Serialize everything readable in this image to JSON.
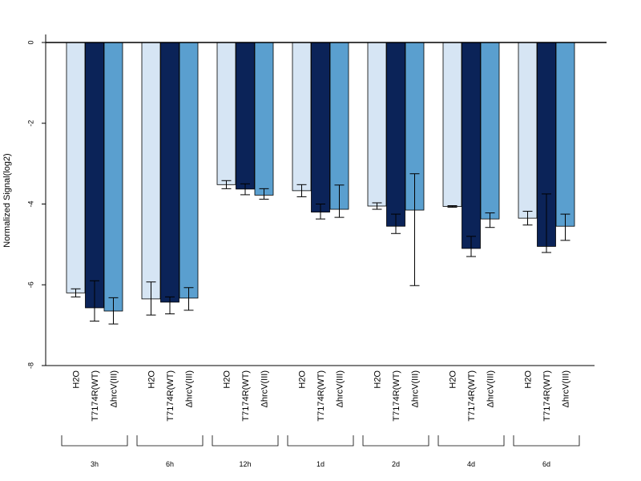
{
  "chart_data": {
    "type": "bar",
    "ylabel": "Normalized Signal(log2)",
    "ylim": [
      -8,
      0
    ],
    "yticks": [
      0,
      -2,
      -4,
      -6,
      -8
    ],
    "groups": [
      "3h",
      "6h",
      "12h",
      "1d",
      "2d",
      "4d",
      "6d"
    ],
    "series": [
      {
        "name": "H2O",
        "color": "#d6e5f4",
        "values": [
          -6.2,
          -6.35,
          -3.52,
          -3.67,
          -4.05,
          -4.06,
          -4.35
        ],
        "err_low": [
          -6.3,
          -6.75,
          -3.62,
          -3.82,
          -4.13,
          -4.08,
          -4.52
        ],
        "err_high": [
          -6.1,
          -5.93,
          -3.42,
          -3.52,
          -3.97,
          -4.04,
          -4.18
        ]
      },
      {
        "name": "T7174R(WT)",
        "color": "#0b2358",
        "values": [
          -6.57,
          -6.43,
          -3.63,
          -4.2,
          -4.55,
          -5.1,
          -5.05
        ],
        "err_low": [
          -6.9,
          -6.72,
          -3.77,
          -4.37,
          -4.73,
          -5.3,
          -5.2
        ],
        "err_high": [
          -5.9,
          -6.3,
          -3.5,
          -4.0,
          -4.25,
          -4.8,
          -3.75
        ]
      },
      {
        "name": "ΔhrcV(III)",
        "color": "#5a9fcf",
        "values": [
          -6.65,
          -6.33,
          -3.78,
          -4.13,
          -4.15,
          -4.37,
          -4.55
        ],
        "err_low": [
          -6.97,
          -6.63,
          -3.88,
          -4.33,
          -6.02,
          -4.58,
          -4.9
        ],
        "err_high": [
          -6.32,
          -6.07,
          -3.62,
          -3.53,
          -3.25,
          -4.22,
          -4.25
        ]
      }
    ]
  }
}
